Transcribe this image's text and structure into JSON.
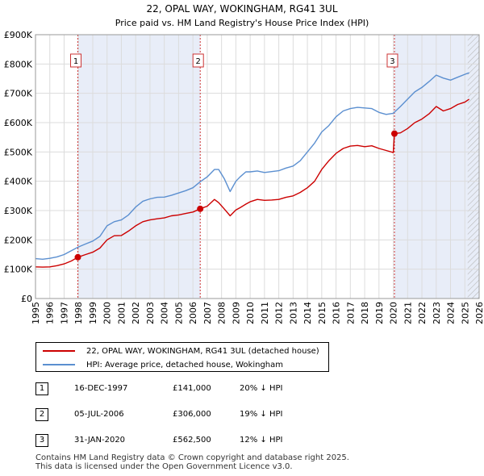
{
  "chart_data": {
    "type": "line",
    "title": "22, OPAL WAY, WOKINGHAM, RG41 3UL",
    "subtitle": "Price paid vs. HM Land Registry's House Price Index (HPI)",
    "xlabel": "",
    "ylabel": "",
    "xlim": [
      1995,
      2026
    ],
    "ylim": [
      0,
      900000
    ],
    "x_ticks": [
      "1995",
      "1996",
      "1997",
      "1998",
      "1999",
      "2000",
      "2001",
      "2002",
      "2003",
      "2004",
      "2005",
      "2006",
      "2007",
      "2008",
      "2009",
      "2010",
      "2011",
      "2012",
      "2013",
      "2014",
      "2015",
      "2016",
      "2017",
      "2018",
      "2019",
      "2020",
      "2021",
      "2022",
      "2023",
      "2024",
      "2025",
      "2026"
    ],
    "y_ticks": [
      {
        "value": 0,
        "label": "£0"
      },
      {
        "value": 100000,
        "label": "£100K"
      },
      {
        "value": 200000,
        "label": "£200K"
      },
      {
        "value": 300000,
        "label": "£300K"
      },
      {
        "value": 400000,
        "label": "£400K"
      },
      {
        "value": 500000,
        "label": "£500K"
      },
      {
        "value": 600000,
        "label": "£600K"
      },
      {
        "value": 700000,
        "label": "£700K"
      },
      {
        "value": 800000,
        "label": "£800K"
      },
      {
        "value": 900000,
        "label": "£900K"
      }
    ],
    "grid": true,
    "colors": {
      "property": "#cc0000",
      "hpi": "#5b8fd0",
      "shade": "#e8edf8",
      "vline": "#cc3333"
    },
    "shaded_spans": [
      [
        1997.96,
        2006.51
      ],
      [
        2020.08,
        2026
      ]
    ],
    "hatched_from": 2025.2,
    "series": [
      {
        "name": "22, OPAL WAY, WOKINGHAM, RG41 3UL (detached house)",
        "key": "property",
        "x": [
          1995.0,
          1995.5,
          1996.0,
          1996.5,
          1997.0,
          1997.5,
          1997.96,
          1998.5,
          1999.0,
          1999.5,
          2000.0,
          2000.5,
          2001.0,
          2001.5,
          2002.0,
          2002.5,
          2003.0,
          2003.5,
          2004.0,
          2004.5,
          2005.0,
          2005.5,
          2006.0,
          2006.51,
          2007.0,
          2007.5,
          2007.8,
          2008.2,
          2008.6,
          2009.0,
          2009.3,
          2009.7,
          2010.0,
          2010.5,
          2011.0,
          2011.5,
          2012.0,
          2012.5,
          2013.0,
          2013.5,
          2014.0,
          2014.5,
          2015.0,
          2015.5,
          2016.0,
          2016.5,
          2017.0,
          2017.5,
          2018.0,
          2018.5,
          2019.0,
          2019.5,
          2020.0,
          2020.08,
          2020.5,
          2021.0,
          2021.5,
          2022.0,
          2022.5,
          2023.0,
          2023.5,
          2024.0,
          2024.5,
          2025.0,
          2025.3
        ],
        "y": [
          108000,
          107000,
          108000,
          112000,
          118000,
          128000,
          141000,
          150000,
          158000,
          172000,
          200000,
          214000,
          215000,
          230000,
          248000,
          262000,
          268000,
          272000,
          275000,
          282000,
          285000,
          290000,
          295000,
          306000,
          315000,
          338000,
          327000,
          305000,
          282000,
          302000,
          310000,
          322000,
          330000,
          338000,
          335000,
          336000,
          338000,
          345000,
          350000,
          362000,
          378000,
          400000,
          440000,
          470000,
          495000,
          512000,
          520000,
          522000,
          518000,
          521000,
          512000,
          505000,
          498000,
          562500,
          565000,
          580000,
          600000,
          612000,
          630000,
          655000,
          640000,
          648000,
          662000,
          670000,
          680000
        ]
      },
      {
        "name": "HPI: Average price, detached house, Wokingham",
        "key": "hpi",
        "x": [
          1995.0,
          1995.5,
          1996.0,
          1996.5,
          1997.0,
          1997.5,
          1998.0,
          1998.5,
          1999.0,
          1999.5,
          2000.0,
          2000.5,
          2001.0,
          2001.5,
          2002.0,
          2002.5,
          2003.0,
          2003.5,
          2004.0,
          2004.5,
          2005.0,
          2005.5,
          2006.0,
          2006.5,
          2007.0,
          2007.5,
          2007.8,
          2008.2,
          2008.6,
          2009.0,
          2009.3,
          2009.7,
          2010.0,
          2010.5,
          2011.0,
          2011.5,
          2012.0,
          2012.5,
          2013.0,
          2013.5,
          2014.0,
          2014.5,
          2015.0,
          2015.5,
          2016.0,
          2016.5,
          2017.0,
          2017.5,
          2018.0,
          2018.5,
          2019.0,
          2019.5,
          2020.0,
          2020.5,
          2021.0,
          2021.5,
          2022.0,
          2022.5,
          2023.0,
          2023.5,
          2024.0,
          2024.5,
          2025.0,
          2025.3
        ],
        "y": [
          136000,
          134000,
          137000,
          142000,
          150000,
          163000,
          176000,
          186000,
          196000,
          212000,
          248000,
          262000,
          268000,
          285000,
          312000,
          332000,
          340000,
          345000,
          346000,
          352000,
          360000,
          368000,
          378000,
          398000,
          415000,
          440000,
          440000,
          408000,
          365000,
          400000,
          415000,
          432000,
          432000,
          435000,
          430000,
          433000,
          436000,
          445000,
          452000,
          470000,
          500000,
          530000,
          568000,
          590000,
          620000,
          640000,
          648000,
          652000,
          650000,
          648000,
          635000,
          628000,
          632000,
          655000,
          680000,
          705000,
          720000,
          740000,
          762000,
          752000,
          745000,
          755000,
          765000,
          770000
        ]
      }
    ],
    "sales": [
      {
        "n": "1",
        "x": 1997.96,
        "y": 141000
      },
      {
        "n": "2",
        "x": 2006.51,
        "y": 306000
      },
      {
        "n": "3",
        "x": 2020.08,
        "y": 562500
      }
    ]
  },
  "legend": {
    "property_label": "22, OPAL WAY, WOKINGHAM, RG41 3UL (detached house)",
    "hpi_label": "HPI: Average price, detached house, Wokingham"
  },
  "transactions": [
    {
      "n": "1",
      "date": "16-DEC-1997",
      "price": "£141,000",
      "hpi": "20% ↓ HPI"
    },
    {
      "n": "2",
      "date": "05-JUL-2006",
      "price": "£306,000",
      "hpi": "19% ↓ HPI"
    },
    {
      "n": "3",
      "date": "31-JAN-2020",
      "price": "£562,500",
      "hpi": "12% ↓ HPI"
    }
  ],
  "footer": {
    "line1": "Contains HM Land Registry data © Crown copyright and database right 2025.",
    "line2": "This data is licensed under the Open Government Licence v3.0."
  }
}
